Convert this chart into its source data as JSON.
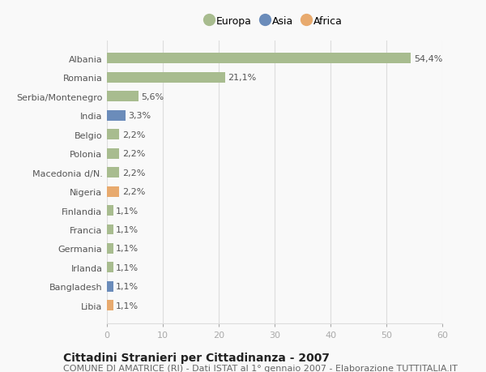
{
  "categories": [
    "Albania",
    "Romania",
    "Serbia/Montenegro",
    "India",
    "Belgio",
    "Polonia",
    "Macedonia d/N.",
    "Nigeria",
    "Finlandia",
    "Francia",
    "Germania",
    "Irlanda",
    "Bangladesh",
    "Libia"
  ],
  "values": [
    54.4,
    21.1,
    5.6,
    3.3,
    2.2,
    2.2,
    2.2,
    2.2,
    1.1,
    1.1,
    1.1,
    1.1,
    1.1,
    1.1
  ],
  "labels": [
    "54,4%",
    "21,1%",
    "5,6%",
    "3,3%",
    "2,2%",
    "2,2%",
    "2,2%",
    "2,2%",
    "1,1%",
    "1,1%",
    "1,1%",
    "1,1%",
    "1,1%",
    "1,1%"
  ],
  "continent": [
    "Europa",
    "Europa",
    "Europa",
    "Asia",
    "Europa",
    "Europa",
    "Europa",
    "Africa",
    "Europa",
    "Europa",
    "Europa",
    "Europa",
    "Asia",
    "Africa"
  ],
  "colors": {
    "Europa": "#a8bc8f",
    "Asia": "#6b8cba",
    "Africa": "#e8aa6e"
  },
  "xlim": [
    0,
    60
  ],
  "xticks": [
    0,
    10,
    20,
    30,
    40,
    50,
    60
  ],
  "title": "Cittadini Stranieri per Cittadinanza - 2007",
  "subtitle": "COMUNE DI AMATRICE (RI) - Dati ISTAT al 1° gennaio 2007 - Elaborazione TUTTITALIA.IT",
  "background_color": "#f9f9f9",
  "grid_color": "#dddddd",
  "title_fontsize": 10,
  "subtitle_fontsize": 8,
  "label_fontsize": 8,
  "ytick_fontsize": 8,
  "xtick_fontsize": 8
}
